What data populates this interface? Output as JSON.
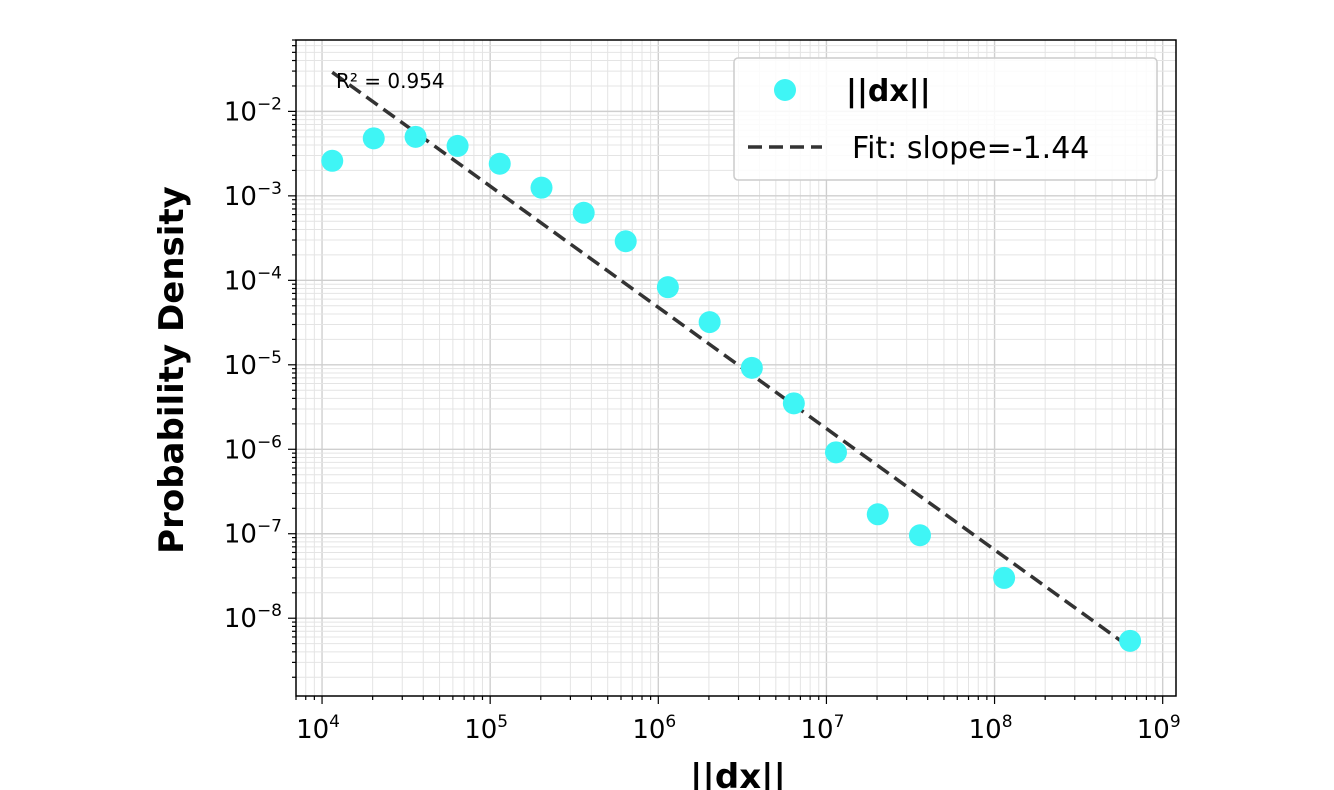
{
  "chart_data": {
    "type": "scatter",
    "xlabel": "||dx||",
    "ylabel": "Probability Density",
    "x_scale": "log",
    "y_scale": "log",
    "xlim": [
      7000,
      1200000000
    ],
    "ylim": [
      1.2e-09,
      0.07
    ],
    "grid": true,
    "legend_position": "top-right",
    "x_ticks": [
      {
        "base": "10",
        "exp": "4",
        "value": 10000
      },
      {
        "base": "10",
        "exp": "5",
        "value": 100000
      },
      {
        "base": "10",
        "exp": "6",
        "value": 1000000
      },
      {
        "base": "10",
        "exp": "7",
        "value": 10000000
      },
      {
        "base": "10",
        "exp": "8",
        "value": 100000000
      },
      {
        "base": "10",
        "exp": "9",
        "value": 1000000000
      }
    ],
    "y_ticks": [
      {
        "base": "10",
        "exp": "−2",
        "value": 0.01
      },
      {
        "base": "10",
        "exp": "−3",
        "value": 0.001
      },
      {
        "base": "10",
        "exp": "−4",
        "value": 0.0001
      },
      {
        "base": "10",
        "exp": "−5",
        "value": 1e-05
      },
      {
        "base": "10",
        "exp": "−6",
        "value": 1e-06
      },
      {
        "base": "10",
        "exp": "−7",
        "value": 1e-07
      },
      {
        "base": "10",
        "exp": "−8",
        "value": 1e-08
      }
    ],
    "series": [
      {
        "name": "||dx||",
        "kind": "scatter",
        "color": "#3ff5f5",
        "x": [
          11500,
          20300,
          36000,
          64000,
          114000,
          202000,
          360000,
          640000,
          1140000,
          2020000,
          3600000,
          6400000,
          11400000,
          20200000,
          36000000,
          114000000,
          640000000
        ],
        "y": [
          0.0026,
          0.0048,
          0.005,
          0.0039,
          0.0024,
          0.00125,
          0.00063,
          0.00029,
          8.3e-05,
          3.2e-05,
          9.2e-06,
          3.5e-06,
          9.2e-07,
          1.7e-07,
          9.6e-08,
          3e-08,
          5.4e-09
        ]
      },
      {
        "name": "Fit: slope=-1.44",
        "kind": "line",
        "style": "dashed",
        "color": "#333333",
        "x": [
          11500,
          640000000
        ],
        "y": [
          0.029,
          4.5e-09
        ]
      }
    ],
    "annotation": "R² = 0.954"
  }
}
